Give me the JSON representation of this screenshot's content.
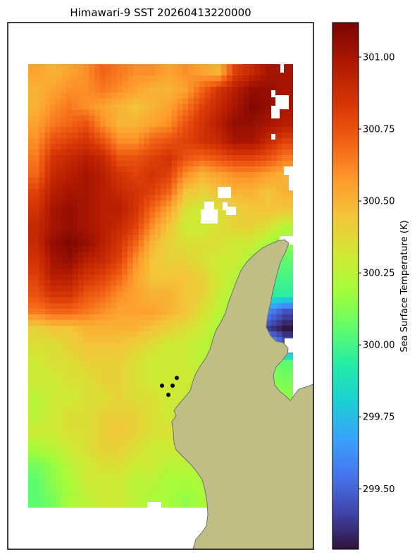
{
  "chart_data": {
    "type": "heatmap",
    "title": "Himawari-9 SST 20260413220000",
    "colorbar": {
      "label": "Sea Surface Temperature (K)",
      "range": [
        299.29,
        301.12
      ],
      "ticks": [
        "299.50",
        "299.75",
        "300.00",
        "300.25",
        "300.50",
        "300.75",
        "301.00"
      ],
      "tick_values": [
        299.5,
        299.75,
        300.0,
        300.25,
        300.5,
        300.75,
        301.0
      ],
      "colormap": "turbo"
    },
    "field": {
      "grid": {
        "cols": 16,
        "rows": 26
      },
      "description_of_values": "approximate SST in K",
      "rows": [
        [
          300.55,
          300.5,
          300.55,
          300.6,
          300.7,
          300.65,
          300.6,
          300.6,
          300.55,
          300.6,
          300.55,
          300.5,
          300.8,
          300.9,
          301.0,
          301.0
        ],
        [
          300.5,
          300.55,
          300.6,
          300.6,
          300.65,
          300.6,
          300.55,
          300.5,
          300.5,
          300.55,
          300.7,
          300.85,
          300.95,
          301.05,
          301.05,
          301.0
        ],
        [
          300.5,
          300.6,
          300.65,
          300.6,
          300.55,
          300.5,
          300.45,
          300.5,
          300.55,
          300.65,
          300.8,
          300.9,
          301.0,
          301.1,
          301.05,
          301.0
        ],
        [
          300.55,
          300.65,
          300.7,
          300.75,
          300.6,
          300.5,
          300.5,
          300.55,
          300.6,
          300.75,
          300.85,
          300.95,
          301.05,
          301.05,
          301.0,
          300.95
        ],
        [
          300.6,
          300.75,
          300.8,
          300.85,
          300.75,
          300.6,
          300.6,
          300.7,
          300.75,
          300.8,
          300.85,
          300.9,
          301.0,
          301.0,
          300.9,
          300.8
        ],
        [
          300.65,
          300.85,
          300.9,
          300.95,
          300.9,
          300.75,
          300.75,
          300.8,
          300.85,
          300.75,
          300.7,
          300.75,
          300.8,
          300.8,
          300.75,
          300.65
        ],
        [
          300.7,
          300.9,
          300.95,
          301.0,
          300.95,
          300.85,
          300.8,
          300.85,
          300.8,
          300.6,
          300.5,
          300.55,
          300.6,
          300.6,
          300.55,
          300.5
        ],
        [
          300.8,
          300.95,
          301.0,
          301.0,
          300.95,
          300.9,
          300.85,
          300.8,
          300.7,
          300.45,
          300.4,
          300.45,
          300.5,
          300.5,
          300.45,
          300.5
        ],
        [
          300.85,
          301.0,
          301.05,
          301.0,
          300.95,
          300.95,
          300.85,
          300.7,
          300.55,
          300.35,
          300.3,
          300.35,
          300.4,
          300.45,
          300.45,
          300.45
        ],
        [
          300.9,
          301.0,
          301.05,
          301.0,
          300.95,
          300.9,
          300.8,
          300.6,
          300.45,
          300.3,
          300.3,
          300.35,
          300.4,
          300.4,
          300.35,
          300.25
        ],
        [
          300.9,
          301.05,
          301.1,
          301.05,
          300.95,
          300.85,
          300.7,
          300.5,
          300.4,
          300.35,
          300.35,
          300.35,
          300.3,
          300.3,
          300.2,
          300.15
        ],
        [
          300.85,
          301.0,
          301.05,
          300.95,
          300.9,
          300.8,
          300.6,
          300.45,
          300.4,
          300.4,
          300.35,
          300.3,
          300.3,
          300.2,
          300.1,
          300.05
        ],
        [
          300.8,
          300.95,
          300.95,
          300.85,
          300.8,
          300.7,
          300.55,
          300.45,
          300.45,
          300.45,
          300.4,
          300.3,
          300.25,
          300.1,
          300.0,
          300.0
        ],
        [
          300.75,
          300.85,
          300.85,
          300.75,
          300.7,
          300.6,
          300.55,
          300.5,
          300.5,
          300.45,
          300.4,
          300.3,
          300.2,
          300.0,
          299.95,
          299.95
        ],
        [
          300.65,
          300.7,
          300.7,
          300.65,
          300.6,
          300.55,
          300.55,
          300.55,
          300.5,
          300.45,
          300.35,
          300.25,
          300.15,
          300.0,
          299.6,
          299.45
        ],
        [
          300.4,
          300.45,
          300.45,
          300.5,
          300.5,
          300.5,
          300.5,
          300.45,
          300.4,
          300.35,
          300.3,
          300.2,
          300.1,
          299.55,
          299.4,
          299.3
        ],
        [
          300.35,
          300.35,
          300.4,
          300.45,
          300.45,
          300.45,
          300.4,
          300.35,
          300.3,
          300.3,
          300.25,
          300.2,
          300.1,
          300.0,
          299.8,
          299.5
        ],
        [
          300.3,
          300.35,
          300.35,
          300.4,
          300.4,
          300.4,
          300.35,
          300.3,
          300.3,
          300.3,
          300.25,
          300.25,
          300.2,
          300.15,
          300.1,
          300.05
        ],
        [
          300.3,
          300.3,
          300.35,
          300.35,
          300.4,
          300.4,
          300.35,
          300.3,
          300.3,
          300.3,
          300.3,
          300.25,
          300.25,
          300.2,
          300.15,
          300.1
        ],
        [
          300.25,
          300.3,
          300.3,
          300.35,
          300.35,
          300.4,
          300.35,
          300.35,
          300.3,
          300.3,
          300.3,
          300.3,
          300.25,
          300.25,
          300.2,
          300.15
        ],
        [
          300.25,
          300.3,
          300.35,
          300.35,
          300.4,
          300.4,
          300.4,
          300.35,
          300.3,
          300.3,
          300.3,
          300.3,
          300.3,
          300.25,
          300.2,
          300.2
        ],
        [
          300.3,
          300.3,
          300.35,
          300.35,
          300.4,
          300.45,
          300.4,
          300.35,
          300.35,
          300.3,
          300.3,
          300.25,
          300.25,
          300.25,
          300.2,
          300.2
        ],
        [
          300.2,
          300.25,
          300.3,
          300.35,
          300.4,
          300.4,
          300.35,
          300.3,
          300.3,
          300.3,
          300.25,
          300.25,
          300.25,
          300.2,
          300.2,
          300.2
        ],
        [
          300.1,
          300.15,
          300.25,
          300.3,
          300.35,
          300.35,
          300.3,
          300.3,
          300.25,
          300.25,
          300.25,
          300.2,
          300.2,
          300.2,
          300.2,
          300.2
        ],
        [
          300.05,
          300.15,
          300.2,
          300.3,
          300.3,
          300.3,
          300.25,
          300.25,
          300.2,
          300.2,
          300.2,
          300.2,
          300.2,
          300.2,
          300.2,
          300.2
        ],
        [
          300.05,
          300.1,
          300.2,
          300.25,
          300.3,
          300.3,
          300.25,
          300.2,
          300.2,
          300.15,
          300.2,
          300.2,
          300.2,
          300.2,
          300.2,
          300.2
        ]
      ]
    },
    "markers": 4,
    "colors": {
      "land": "#bfbf85",
      "land_edge": "#707070",
      "marker": "#000000",
      "axes_frame": "#000000"
    }
  }
}
